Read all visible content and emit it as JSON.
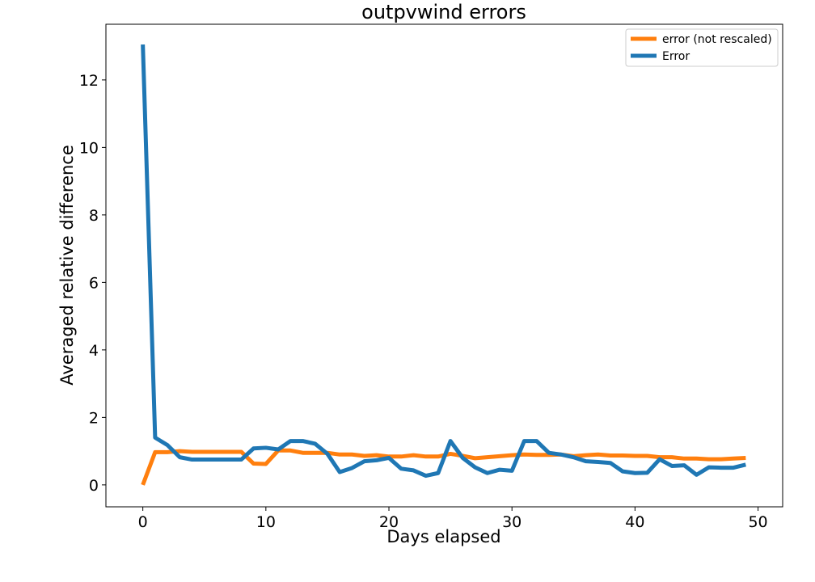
{
  "chart_data": {
    "type": "line",
    "title": "outpvwind errors",
    "xlabel": "Days elapsed",
    "ylabel": "Averaged relative difference",
    "xlim": [
      -3,
      52
    ],
    "ylim": [
      -0.65,
      13.65
    ],
    "xticks": [
      0,
      10,
      20,
      30,
      40,
      50
    ],
    "yticks": [
      0,
      2,
      4,
      6,
      8,
      10,
      12
    ],
    "grid": false,
    "legend_position": "top-right",
    "series": [
      {
        "name": "error (not rescaled)",
        "color": "#ff7f0e",
        "x": [
          0,
          1,
          2,
          3,
          4,
          5,
          6,
          7,
          8,
          9,
          10,
          11,
          12,
          13,
          14,
          15,
          16,
          17,
          18,
          19,
          20,
          21,
          22,
          23,
          24,
          25,
          26,
          27,
          28,
          29,
          30,
          31,
          32,
          33,
          34,
          35,
          36,
          37,
          38,
          39,
          40,
          41,
          42,
          43,
          44,
          45,
          46,
          47,
          48,
          49
        ],
        "y": [
          0.0,
          0.97,
          0.97,
          1.0,
          0.98,
          0.98,
          0.98,
          0.98,
          0.98,
          0.63,
          0.62,
          1.02,
          1.02,
          0.95,
          0.95,
          0.95,
          0.9,
          0.9,
          0.86,
          0.88,
          0.84,
          0.84,
          0.88,
          0.84,
          0.84,
          0.92,
          0.86,
          0.79,
          0.82,
          0.85,
          0.88,
          0.9,
          0.89,
          0.89,
          0.9,
          0.85,
          0.88,
          0.9,
          0.87,
          0.87,
          0.86,
          0.86,
          0.82,
          0.82,
          0.78,
          0.78,
          0.76,
          0.76,
          0.78,
          0.8
        ]
      },
      {
        "name": "Error",
        "color": "#1f77b4",
        "x": [
          0,
          1,
          2,
          3,
          4,
          5,
          6,
          7,
          8,
          9,
          10,
          11,
          12,
          13,
          14,
          15,
          16,
          17,
          18,
          19,
          20,
          21,
          22,
          23,
          24,
          25,
          26,
          27,
          28,
          29,
          30,
          31,
          32,
          33,
          34,
          35,
          36,
          37,
          38,
          39,
          40,
          41,
          42,
          43,
          44,
          45,
          46,
          47,
          48,
          49
        ],
        "y": [
          13.05,
          1.4,
          1.18,
          0.82,
          0.75,
          0.75,
          0.75,
          0.75,
          0.75,
          1.08,
          1.1,
          1.05,
          1.3,
          1.3,
          1.22,
          0.92,
          0.38,
          0.5,
          0.7,
          0.73,
          0.8,
          0.48,
          0.43,
          0.27,
          0.35,
          1.3,
          0.8,
          0.52,
          0.35,
          0.45,
          0.42,
          1.3,
          1.3,
          0.95,
          0.9,
          0.82,
          0.7,
          0.68,
          0.65,
          0.4,
          0.35,
          0.36,
          0.76,
          0.56,
          0.58,
          0.3,
          0.52,
          0.51,
          0.51,
          0.6
        ]
      }
    ]
  }
}
